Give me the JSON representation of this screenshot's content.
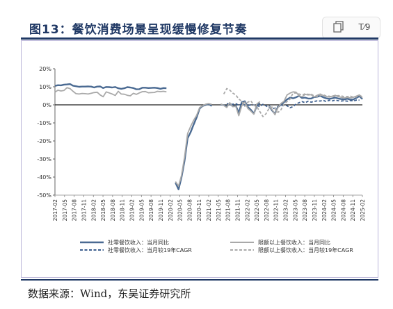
{
  "header": {
    "title": "图13：餐饮消费场景呈现缓慢修复节奏",
    "tools": [
      "copy-icon",
      "translate-icon"
    ],
    "translate_label": "T⁄9"
  },
  "source": "数据来源：Wind，东吴证券研究所",
  "chart_data": {
    "type": "line",
    "ylim": [
      -50,
      20
    ],
    "yticks": [
      20,
      10,
      0,
      -10,
      -20,
      -30,
      -40,
      -50
    ],
    "ytick_labels": [
      "20%",
      "10%",
      "0%",
      "-10%",
      "-20%",
      "-30%",
      "-40%",
      "-50%"
    ],
    "xtick_labels": [
      "2017-02",
      "2017-05",
      "2017-08",
      "2017-11",
      "2018-02",
      "2018-05",
      "2018-08",
      "2018-11",
      "2019-02",
      "2019-05",
      "2019-08",
      "2019-11",
      "2020-02",
      "2020-05",
      "2020-08",
      "2020-11",
      "2021-02",
      "2021-05",
      "2021-08",
      "2021-11",
      "2022-02",
      "2022-05",
      "2022-08",
      "2022-11",
      "2023-02",
      "2023-05",
      "2023-08",
      "2023-11",
      "2024-02",
      "2024-05",
      "2024-08",
      "2024-11",
      "2025-02"
    ],
    "grid": false,
    "legend_position": "bottom",
    "series": [
      {
        "name": "社零餐饮收入：当月同比",
        "color": "#4a6a92",
        "dash": "solid",
        "values": [
          10.5,
          10.9,
          10.8,
          11.2,
          11.3,
          11.5,
          10.6,
          10.3,
          10.0,
          10.1,
          10.1,
          10.2,
          10.1,
          9.6,
          10.1,
          10.2,
          9.3,
          9.9,
          9.8,
          9.6,
          9.9,
          9.2,
          8.9,
          9.2,
          9.8,
          9.6,
          9.3,
          8.6,
          8.7,
          9.5,
          9.5,
          9.3,
          9.4,
          9.5,
          9.3,
          8.9,
          9.3,
          9.2,
          null,
          null,
          -43.1,
          -46.8,
          -40.0,
          -31.0,
          -18.5,
          -15.2,
          -11.0,
          -7.0,
          -2.0,
          -0.6,
          0.0,
          0.5,
          -0.6,
          null,
          null,
          0.2,
          -0.2,
          -0.9,
          0.7,
          -0.8,
          -0.5,
          -4.5,
          1.5,
          2.0,
          -1.2,
          -2.8,
          -4.8,
          -0.3,
          1.0,
          null,
          null,
          -0.4,
          -3.0,
          -5.0,
          -1.0,
          0.1,
          1.5,
          3.0,
          4.0,
          3.6,
          4.2,
          5.0,
          3.8,
          4.0,
          3.5,
          3.5,
          4.3,
          4.5,
          5.0,
          4.2,
          3.6,
          3.3,
          3.6,
          4.0,
          3.5,
          3.2,
          3.0,
          3.4,
          2.9,
          3.0,
          3.8,
          4.8,
          3.2
        ]
      },
      {
        "name": "社零餐饮收入：当月较19年CAGR",
        "color": "#3d5f8f",
        "dash": "dash",
        "values": [
          null,
          null,
          null,
          null,
          null,
          null,
          null,
          null,
          null,
          null,
          null,
          null,
          null,
          null,
          null,
          null,
          null,
          null,
          null,
          null,
          null,
          null,
          null,
          null,
          null,
          null,
          null,
          null,
          null,
          null,
          null,
          null,
          null,
          null,
          null,
          null,
          null,
          null,
          null,
          null,
          null,
          null,
          null,
          null,
          null,
          null,
          null,
          null,
          null,
          null,
          null,
          null,
          null,
          null,
          null,
          null,
          null,
          0.7,
          0.4,
          0.3,
          0.7,
          -0.3,
          0.5,
          -0.1,
          -0.4,
          0.0,
          -0.1,
          -0.3,
          -1.0,
          0.3,
          -0.5,
          -1.5,
          -2.2,
          -1.8,
          -1.0,
          -0.6,
          -0.2,
          -0.5,
          -1.6,
          -1.0,
          0.5,
          1.2,
          1.8,
          1.2,
          2.0,
          1.5,
          1.9,
          2.2,
          2.1,
          2.5,
          1.8,
          2.5,
          2.2,
          2.6,
          2.3,
          2.1,
          2.3,
          2.0,
          2.4,
          2.1,
          2.6,
          2.6
        ]
      },
      {
        "name": "限额以上餐饮收入：当月同比",
        "color": "#a9a9a9",
        "dash": "solid",
        "values": [
          7.0,
          8.1,
          7.7,
          8.0,
          9.5,
          9.0,
          7.5,
          6.2,
          6.0,
          6.3,
          6.2,
          6.0,
          6.4,
          6.8,
          7.0,
          5.5,
          4.5,
          7.2,
          6.6,
          6.0,
          5.2,
          7.5,
          6.0,
          5.9,
          5.3,
          5.0,
          6.4,
          5.8,
          6.6,
          7.3,
          7.4,
          6.7,
          6.8,
          6.9,
          7.5,
          7.3,
          7.5,
          7.2,
          null,
          null,
          -42.5,
          -45.0,
          -39.0,
          -29.0,
          -15.9,
          -12.0,
          -8.6,
          -5.8,
          -1.5,
          -0.5,
          0.4,
          0.7,
          0.3,
          null,
          null,
          0.5,
          -0.3,
          -1.5,
          1.2,
          -1.0,
          -0.8,
          -6.0,
          -0.4,
          1.5,
          -2.0,
          -3.5,
          -5.2,
          0.5,
          1.8,
          null,
          null,
          -0.8,
          -2.5,
          -5.5,
          -1.5,
          0.8,
          2.0,
          5.5,
          6.5,
          7.2,
          7.0,
          5.0,
          4.5,
          5.8,
          5.5,
          5.6,
          4.4,
          5.3,
          6.0,
          5.2,
          4.6,
          4.3,
          4.8,
          5.3,
          4.5,
          4.2,
          3.8,
          4.1,
          3.9,
          4.2,
          4.8,
          5.5,
          4.0
        ]
      },
      {
        "name": "限额以上餐饮收入：当月较19年CAGR",
        "color": "#a9a9a9",
        "dash": "dash",
        "values": [
          null,
          null,
          null,
          null,
          null,
          null,
          null,
          null,
          null,
          null,
          null,
          null,
          null,
          null,
          null,
          null,
          null,
          null,
          null,
          null,
          null,
          null,
          null,
          null,
          null,
          null,
          null,
          null,
          null,
          null,
          null,
          null,
          null,
          null,
          null,
          null,
          null,
          null,
          null,
          null,
          null,
          null,
          null,
          null,
          null,
          null,
          null,
          null,
          null,
          null,
          null,
          null,
          null,
          null,
          null,
          null,
          6.0,
          9.0,
          8.2,
          6.5,
          5.5,
          3.2,
          2.0,
          -0.8,
          1.5,
          2.2,
          -0.2,
          -1.1,
          -3.8,
          -6.5,
          -5.0,
          -2.0,
          -1.2,
          -2.2,
          -4.2,
          -2.7,
          0.5,
          1.8,
          3.2,
          6.5,
          6.6,
          6.0,
          5.4,
          6.2,
          5.8,
          6.0,
          4.9,
          4.6,
          5.1,
          5.6,
          4.9,
          4.8,
          4.4,
          4.9,
          5.1,
          5.0,
          4.5,
          4.6,
          4.8,
          4.2,
          4.4,
          5.2,
          4.6
        ]
      }
    ]
  }
}
